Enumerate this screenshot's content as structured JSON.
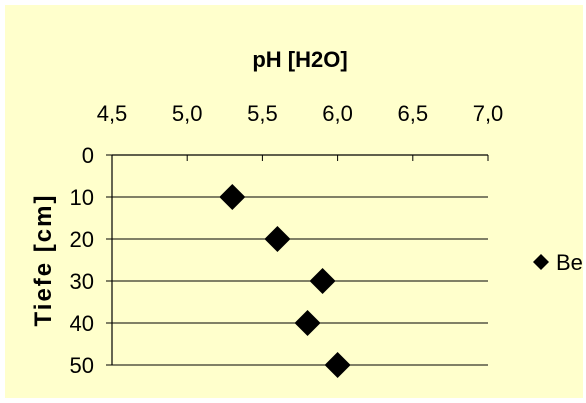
{
  "chart_data": {
    "type": "scatter",
    "title": "",
    "xlabel": "pH [H2O]",
    "ylabel": "Tiefe [cm]",
    "x_axis_position": "top",
    "y_axis_inverted": true,
    "xlim": [
      4.5,
      7.0
    ],
    "ylim": [
      0,
      50
    ],
    "xticks": [
      "4,5",
      "5,0",
      "5,5",
      "6,0",
      "6,5",
      "7,0"
    ],
    "yticks": [
      "0",
      "10",
      "20",
      "30",
      "40",
      "50"
    ],
    "grid": "horizontal",
    "legend": "right",
    "series": [
      {
        "name": "Be",
        "marker": "diamond",
        "color": "#000000",
        "points": [
          {
            "x": 5.3,
            "y": 10
          },
          {
            "x": 5.6,
            "y": 20
          },
          {
            "x": 5.9,
            "y": 30
          },
          {
            "x": 5.8,
            "y": 40
          },
          {
            "x": 6.0,
            "y": 50
          }
        ]
      }
    ]
  },
  "colors": {
    "background": "#ffffcc",
    "marker": "#000000",
    "axis": "#000000"
  }
}
